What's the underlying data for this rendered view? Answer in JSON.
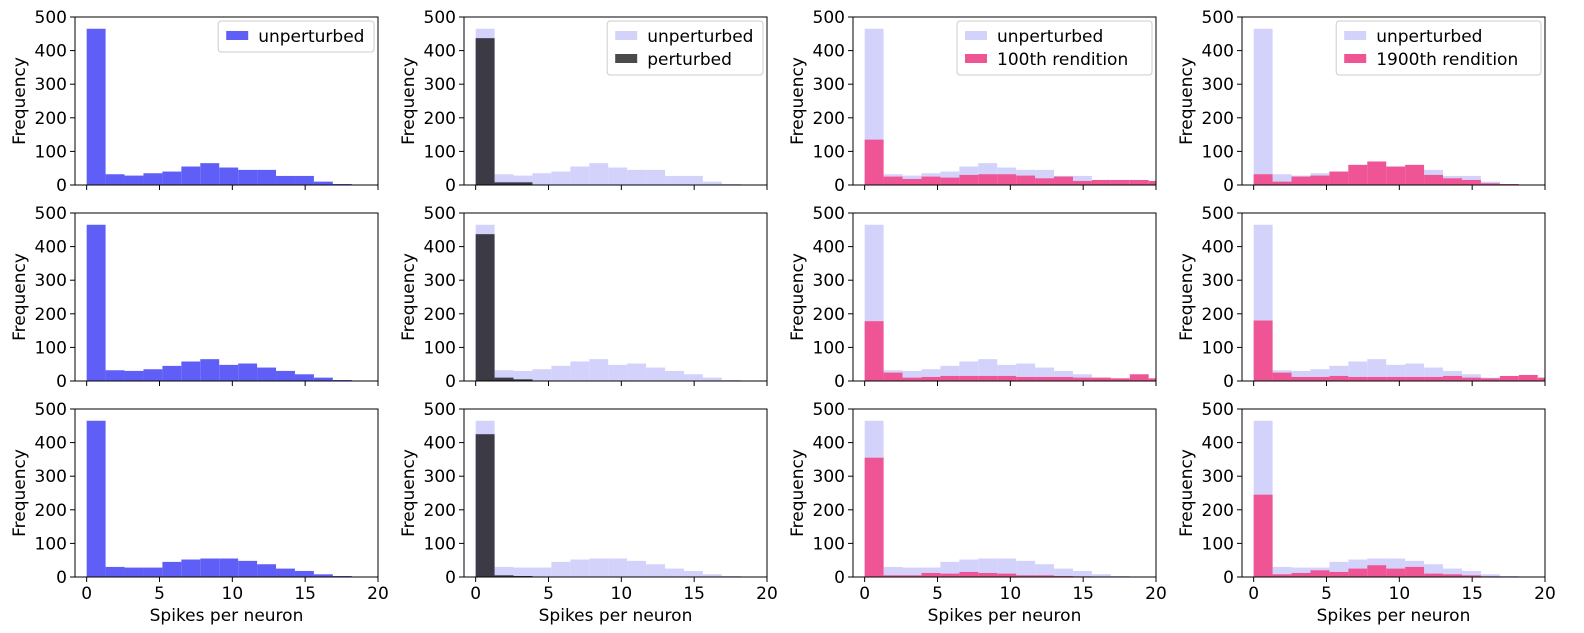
{
  "figure": {
    "xlabel": "Spikes per neuron",
    "ylabel": "Frequency",
    "xlim": [
      -0.8,
      20
    ],
    "ylim": [
      0,
      500
    ],
    "xticks": [
      0,
      5,
      10,
      15,
      20
    ],
    "yticks": [
      0,
      100,
      200,
      300,
      400,
      500
    ],
    "bin_width": 1.3
  },
  "colors": {
    "unperturbed": "#5f5ff7",
    "unperturbed_light": "#d2d2fb",
    "perturbed": "#3b3a45",
    "rendition": "#ef5595",
    "legend_dark": "#4a4a4a"
  },
  "chart_data": [
    {
      "type": "bar",
      "xlabel": "",
      "ylabel": "Frequency",
      "legend": [
        "unperturbed"
      ],
      "series": [
        {
          "name": "unperturbed",
          "color": "unperturbed",
          "values": [
            465,
            32,
            28,
            35,
            40,
            55,
            65,
            52,
            45,
            45,
            27,
            27,
            10,
            3,
            1,
            0,
            0,
            0,
            0,
            0
          ]
        }
      ]
    },
    {
      "type": "bar",
      "xlabel": "",
      "ylabel": "Frequency",
      "legend": [
        "unperturbed",
        "perturbed"
      ],
      "series": [
        {
          "name": "unperturbed",
          "color": "unperturbed_light",
          "values": [
            465,
            32,
            28,
            35,
            40,
            55,
            65,
            52,
            45,
            45,
            27,
            27,
            10,
            3,
            1,
            0,
            0,
            0,
            0,
            0
          ]
        },
        {
          "name": "perturbed",
          "color": "perturbed",
          "values": [
            437,
            8,
            8,
            0,
            0,
            0,
            0,
            0,
            0,
            0,
            0,
            0,
            0,
            0,
            0,
            0,
            0,
            0,
            0,
            0
          ]
        }
      ]
    },
    {
      "type": "bar",
      "xlabel": "",
      "ylabel": "Frequency",
      "legend": [
        "unperturbed",
        "100th rendition"
      ],
      "series": [
        {
          "name": "unperturbed",
          "color": "unperturbed_light",
          "values": [
            465,
            32,
            28,
            35,
            40,
            55,
            65,
            52,
            45,
            45,
            27,
            27,
            10,
            3,
            1,
            0,
            0,
            0,
            0,
            0
          ]
        },
        {
          "name": "100th rendition",
          "color": "rendition",
          "values": [
            135,
            25,
            18,
            25,
            22,
            30,
            32,
            32,
            28,
            20,
            25,
            12,
            15,
            15,
            15,
            12,
            5,
            0,
            0,
            0
          ]
        }
      ]
    },
    {
      "type": "bar",
      "xlabel": "",
      "ylabel": "Frequency",
      "legend": [
        "unperturbed",
        "1900th rendition"
      ],
      "series": [
        {
          "name": "unperturbed",
          "color": "unperturbed_light",
          "values": [
            465,
            32,
            28,
            35,
            40,
            55,
            65,
            52,
            45,
            45,
            27,
            27,
            10,
            3,
            1,
            0,
            0,
            0,
            0,
            0
          ]
        },
        {
          "name": "1900th rendition",
          "color": "rendition",
          "values": [
            32,
            10,
            25,
            28,
            40,
            60,
            70,
            55,
            60,
            30,
            20,
            15,
            5,
            3,
            0,
            0,
            0,
            0,
            0,
            0
          ]
        }
      ]
    },
    {
      "type": "bar",
      "xlabel": "",
      "ylabel": "Frequency",
      "legend": [],
      "series": [
        {
          "name": "",
          "color": "unperturbed",
          "values": [
            465,
            32,
            30,
            35,
            45,
            58,
            65,
            48,
            52,
            40,
            30,
            20,
            10,
            3,
            1,
            0,
            0,
            0,
            0,
            0
          ]
        }
      ]
    },
    {
      "type": "bar",
      "xlabel": "",
      "ylabel": "Frequency",
      "legend": [],
      "series": [
        {
          "name": "",
          "color": "unperturbed_light",
          "values": [
            465,
            32,
            30,
            35,
            45,
            58,
            65,
            48,
            52,
            40,
            30,
            20,
            10,
            3,
            1,
            0,
            0,
            0,
            0,
            0
          ]
        },
        {
          "name": "",
          "color": "perturbed",
          "values": [
            437,
            10,
            5,
            0,
            0,
            0,
            0,
            0,
            0,
            0,
            0,
            0,
            0,
            0,
            0,
            0,
            0,
            0,
            0,
            0
          ]
        }
      ]
    },
    {
      "type": "bar",
      "xlabel": "",
      "ylabel": "Frequency",
      "legend": [],
      "series": [
        {
          "name": "",
          "color": "unperturbed_light",
          "values": [
            465,
            32,
            30,
            35,
            45,
            58,
            65,
            48,
            52,
            40,
            30,
            20,
            10,
            3,
            1,
            0,
            0,
            0,
            0,
            0
          ]
        },
        {
          "name": "",
          "color": "rendition",
          "values": [
            178,
            25,
            10,
            12,
            15,
            15,
            15,
            15,
            12,
            12,
            12,
            10,
            10,
            8,
            20,
            8,
            10,
            8,
            10,
            10
          ]
        }
      ]
    },
    {
      "type": "bar",
      "xlabel": "",
      "ylabel": "Frequency",
      "legend": [],
      "series": [
        {
          "name": "",
          "color": "unperturbed_light",
          "values": [
            465,
            32,
            30,
            35,
            45,
            58,
            65,
            48,
            52,
            40,
            30,
            20,
            10,
            3,
            1,
            0,
            0,
            0,
            0,
            0
          ]
        },
        {
          "name": "",
          "color": "rendition",
          "values": [
            180,
            25,
            12,
            12,
            15,
            12,
            12,
            12,
            12,
            12,
            15,
            10,
            8,
            15,
            18,
            10,
            5,
            10,
            10,
            10
          ]
        }
      ]
    },
    {
      "type": "bar",
      "xlabel": "Spikes per neuron",
      "ylabel": "Frequency",
      "legend": [],
      "series": [
        {
          "name": "",
          "color": "unperturbed",
          "values": [
            465,
            30,
            28,
            28,
            45,
            52,
            55,
            55,
            48,
            38,
            25,
            18,
            8,
            3,
            1,
            0,
            0,
            0,
            0,
            0
          ]
        }
      ]
    },
    {
      "type": "bar",
      "xlabel": "Spikes per neuron",
      "ylabel": "Frequency",
      "legend": [],
      "series": [
        {
          "name": "",
          "color": "unperturbed_light",
          "values": [
            465,
            30,
            28,
            28,
            45,
            52,
            55,
            55,
            48,
            38,
            25,
            18,
            8,
            3,
            1,
            0,
            0,
            0,
            0,
            0
          ]
        },
        {
          "name": "",
          "color": "perturbed",
          "values": [
            425,
            5,
            3,
            0,
            0,
            0,
            0,
            0,
            0,
            0,
            0,
            0,
            0,
            0,
            0,
            0,
            0,
            0,
            0,
            0
          ]
        }
      ]
    },
    {
      "type": "bar",
      "xlabel": "Spikes per neuron",
      "ylabel": "Frequency",
      "legend": [],
      "series": [
        {
          "name": "",
          "color": "unperturbed_light",
          "values": [
            465,
            30,
            28,
            28,
            45,
            52,
            55,
            55,
            48,
            38,
            25,
            18,
            8,
            3,
            1,
            0,
            0,
            0,
            0,
            0
          ]
        },
        {
          "name": "",
          "color": "rendition",
          "values": [
            355,
            5,
            5,
            12,
            10,
            15,
            12,
            10,
            5,
            5,
            3,
            2,
            1,
            0,
            0,
            0,
            0,
            0,
            0,
            0
          ]
        }
      ]
    },
    {
      "type": "bar",
      "xlabel": "Spikes per neuron",
      "ylabel": "Frequency",
      "legend": [],
      "series": [
        {
          "name": "",
          "color": "unperturbed_light",
          "values": [
            465,
            30,
            28,
            28,
            45,
            52,
            55,
            55,
            48,
            38,
            25,
            18,
            8,
            3,
            1,
            0,
            0,
            0,
            0,
            0
          ]
        },
        {
          "name": "",
          "color": "rendition",
          "values": [
            245,
            8,
            12,
            20,
            15,
            25,
            35,
            25,
            30,
            10,
            8,
            5,
            2,
            0,
            0,
            0,
            0,
            0,
            0,
            0
          ]
        }
      ]
    }
  ]
}
